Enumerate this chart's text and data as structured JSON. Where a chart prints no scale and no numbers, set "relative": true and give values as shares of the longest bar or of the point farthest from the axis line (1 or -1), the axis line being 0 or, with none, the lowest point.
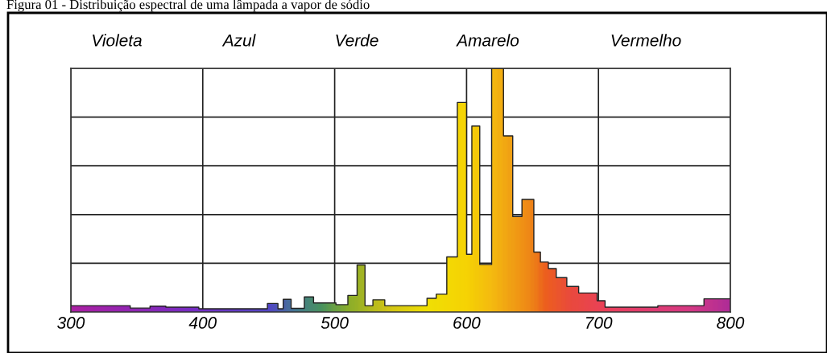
{
  "chart_data": {
    "type": "area",
    "title": "Figura 01 - Distribuição espectral de uma lâmpada a vapor de sódio",
    "relative": true,
    "x": [
      300,
      345,
      345,
      360,
      360,
      372,
      372,
      397,
      397,
      449,
      449,
      457,
      457,
      461,
      461,
      467,
      467,
      477,
      477,
      484,
      484,
      501,
      501,
      510,
      510,
      517,
      517,
      523,
      523,
      529,
      529,
      538,
      538,
      570,
      570,
      577,
      577,
      585,
      585,
      593,
      593,
      600,
      600,
      604,
      604,
      610,
      610,
      619,
      619,
      628,
      628,
      635,
      635,
      642,
      642,
      651,
      651,
      656,
      656,
      662,
      662,
      668,
      668,
      676,
      676,
      685,
      685,
      699,
      699,
      705,
      705,
      745,
      745,
      780,
      780,
      800
    ],
    "series": [
      {
        "color": "#f0a014",
        "values": [
          0.026,
          0.026,
          0.016,
          0.016,
          0.024,
          0.024,
          0.02,
          0.02,
          0.013,
          0.013,
          0.035,
          0.035,
          0.013,
          0.013,
          0.052,
          0.052,
          0.015,
          0.015,
          0.062,
          0.062,
          0.037,
          0.037,
          0.03,
          0.03,
          0.068,
          0.068,
          0.193,
          0.193,
          0.026,
          0.026,
          0.05,
          0.05,
          0.026,
          0.026,
          0.056,
          0.056,
          0.073,
          0.073,
          0.226,
          0.226,
          0.86,
          0.86,
          0.237,
          0.237,
          0.763,
          0.763,
          0.195,
          0.195,
          1,
          1,
          0.723,
          0.723,
          0.392,
          0.392,
          0.462,
          0.462,
          0.246,
          0.246,
          0.205,
          0.205,
          0.178,
          0.178,
          0.141,
          0.141,
          0.105,
          0.105,
          0.078,
          0.078,
          0.046,
          0.046,
          0.02,
          0.02,
          0.026,
          0.026,
          0.054,
          0.054
        ]
      }
    ],
    "xlim": [
      300,
      800
    ],
    "xticks": [
      300,
      400,
      500,
      600,
      700,
      800
    ],
    "grid": true,
    "annotations": [
      "Violeta",
      "Azul",
      "Verde",
      "Amarelo",
      "Vermelho"
    ]
  }
}
